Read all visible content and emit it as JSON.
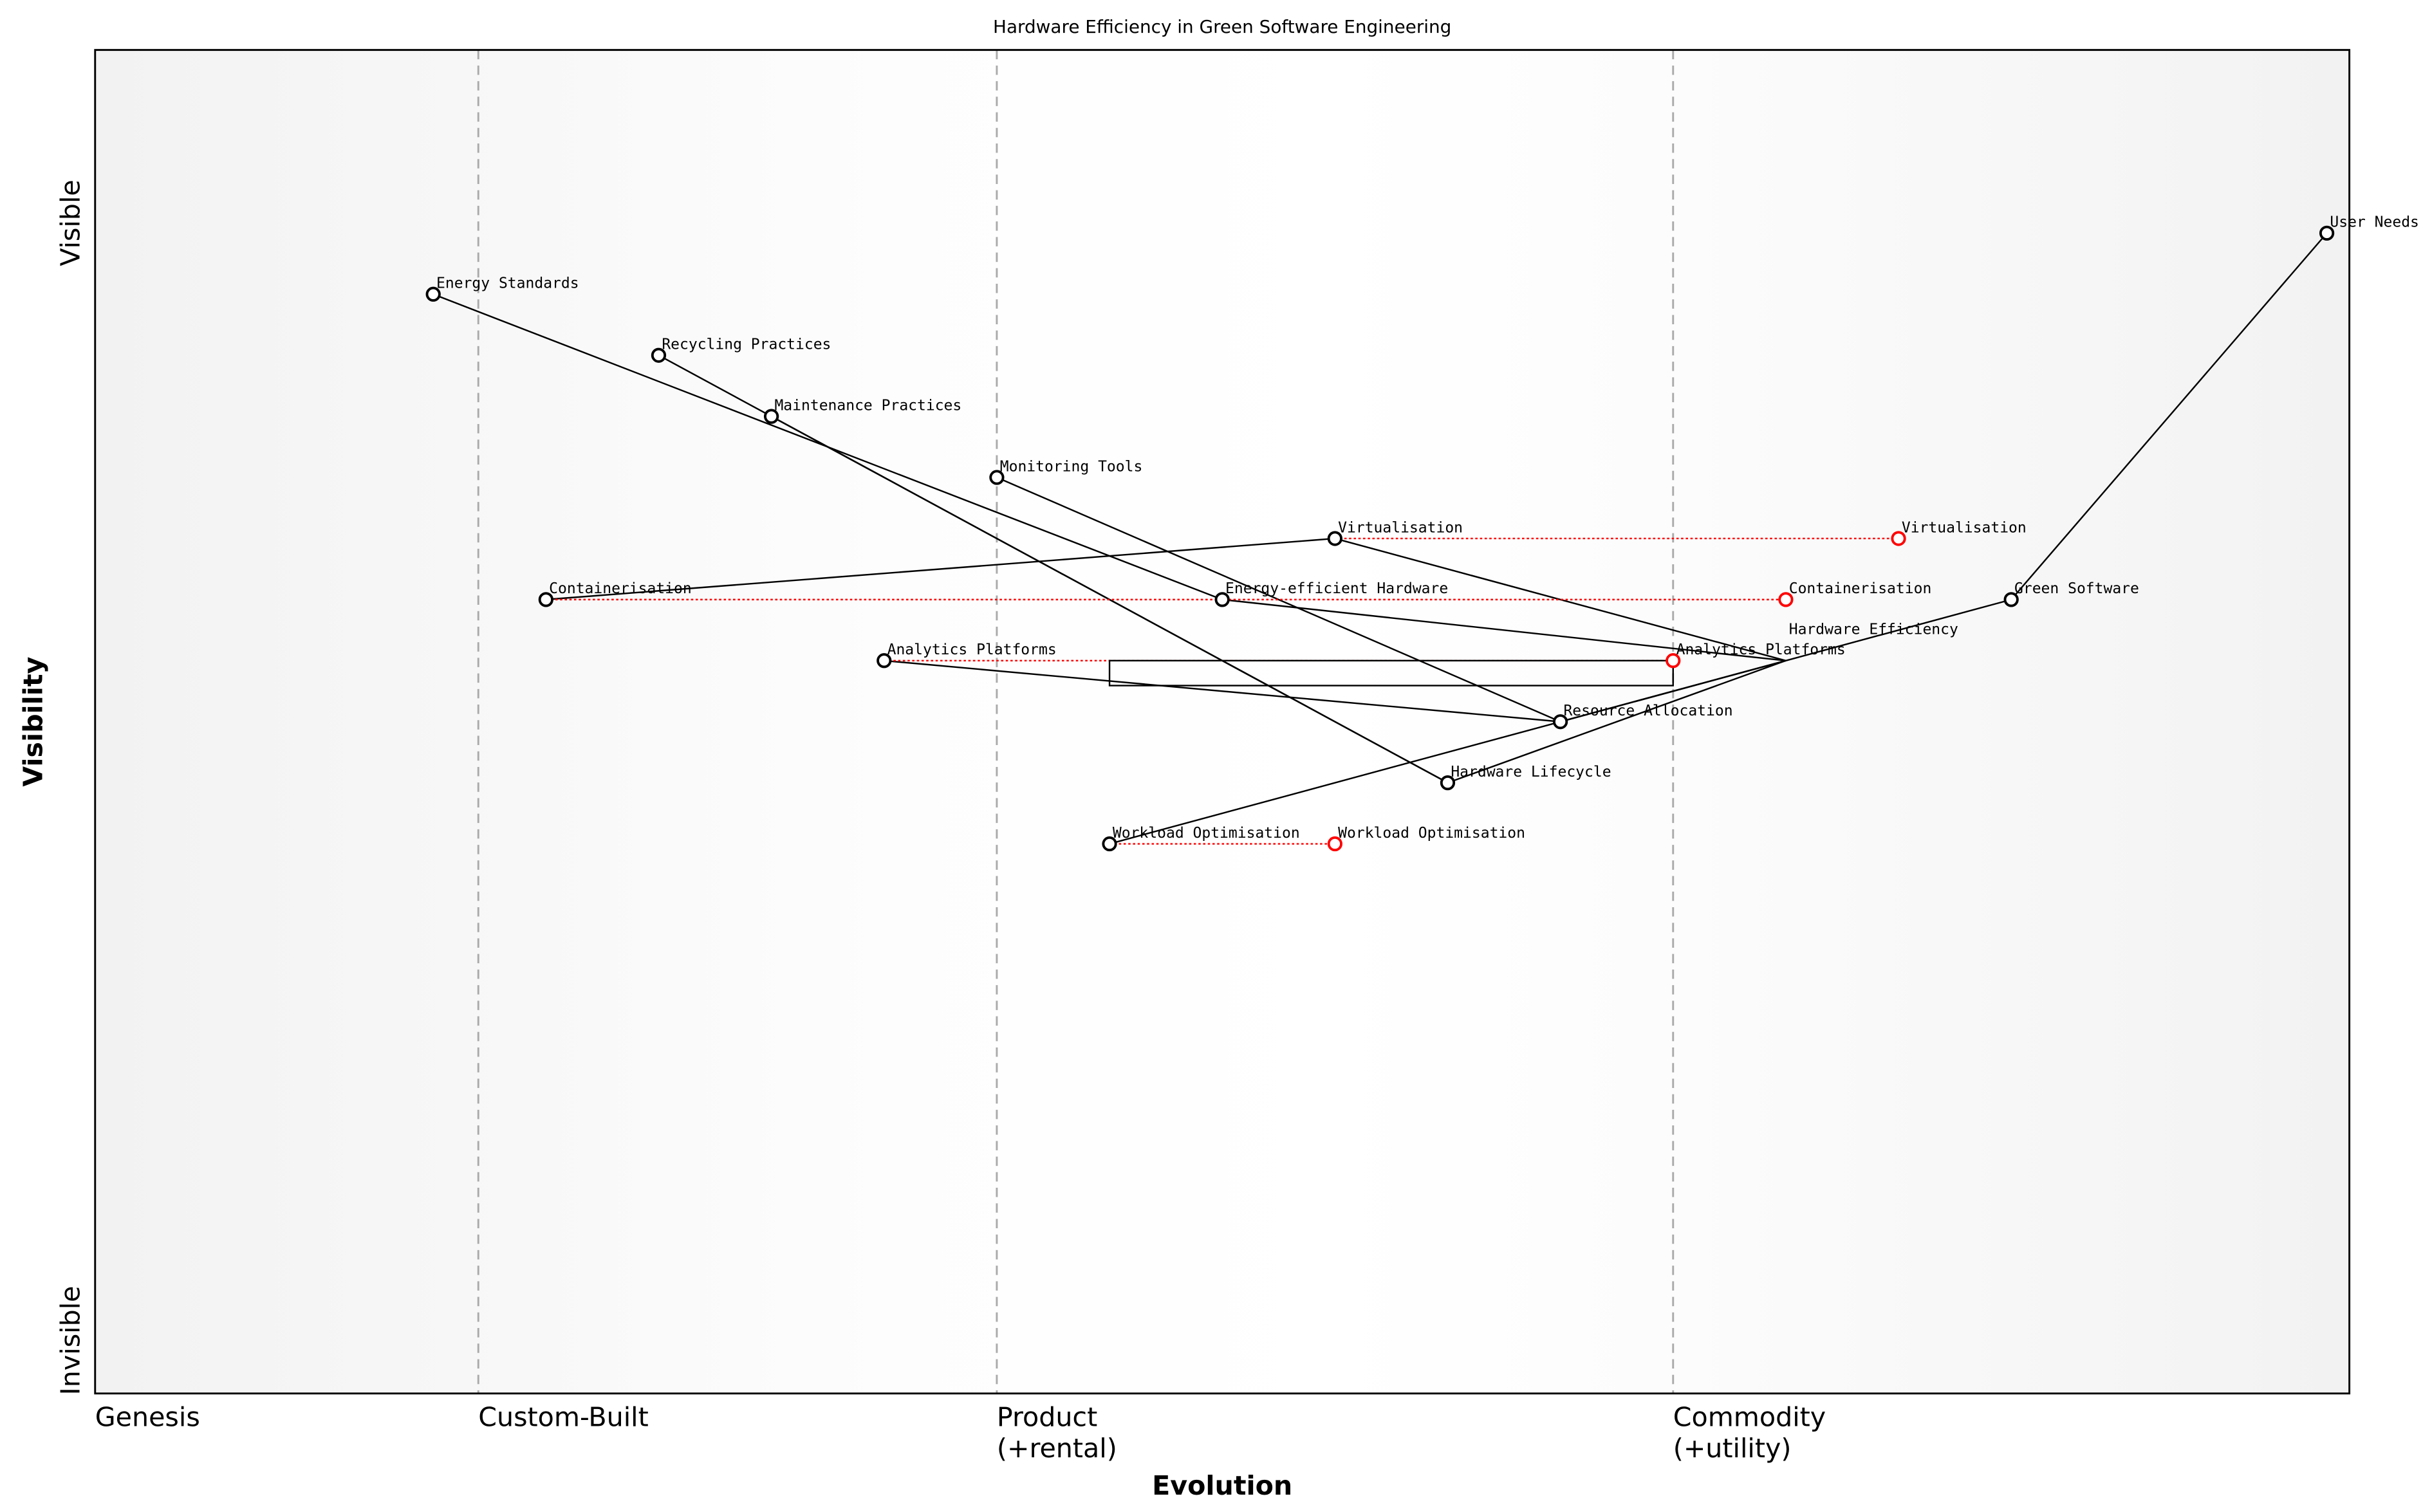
{
  "chart_data": {
    "type": "wardley-map",
    "title": "Hardware Efficiency in Green Software Engineering",
    "xlabel": "Evolution",
    "ylabel": "Visibility",
    "y_top_label": "Visible",
    "y_bottom_label": "Invisible",
    "xlim": [
      0,
      1
    ],
    "ylim": [
      0,
      1.1
    ],
    "stages": [
      {
        "label": "Genesis",
        "x": 0
      },
      {
        "label": "Custom-Built",
        "x": 0.17
      },
      {
        "label": "Product\n(+rental)",
        "x": 0.4
      },
      {
        "label": "Commodity\n(+utility)",
        "x": 0.7
      }
    ],
    "components": [
      {
        "name": "User Needs",
        "evolution": 0.99,
        "visibility": 0.95
      },
      {
        "name": "Energy Standards",
        "evolution": 0.15,
        "visibility": 0.9
      },
      {
        "name": "Recycling Practices",
        "evolution": 0.25,
        "visibility": 0.85
      },
      {
        "name": "Maintenance Practices",
        "evolution": 0.3,
        "visibility": 0.8
      },
      {
        "name": "Monitoring Tools",
        "evolution": 0.4,
        "visibility": 0.75
      },
      {
        "name": "Virtualisation",
        "evolution": 0.55,
        "visibility": 0.7
      },
      {
        "name": "Containerisation",
        "evolution": 0.2,
        "visibility": 0.65
      },
      {
        "name": "Energy-efficient Hardware",
        "evolution": 0.5,
        "visibility": 0.65
      },
      {
        "name": "Green Software",
        "evolution": 0.85,
        "visibility": 0.65
      },
      {
        "name": "Analytics Platforms",
        "evolution": 0.35,
        "visibility": 0.6
      },
      {
        "name": "Hardware Efficiency",
        "evolution": 0.75,
        "visibility": 0.6,
        "marker": false
      },
      {
        "name": "Resource Allocation",
        "evolution": 0.65,
        "visibility": 0.55
      },
      {
        "name": "Hardware Lifecycle",
        "evolution": 0.6,
        "visibility": 0.5
      },
      {
        "name": "Workload Optimisation",
        "evolution": 0.45,
        "visibility": 0.45
      }
    ],
    "evolved": [
      {
        "name": "Virtualisation",
        "from": 0.55,
        "to": 0.8,
        "visibility": 0.7
      },
      {
        "name": "Containerisation",
        "from": 0.2,
        "to": 0.75,
        "visibility": 0.65
      },
      {
        "name": "Analytics Platforms",
        "from": 0.35,
        "to": 0.7,
        "visibility": 0.6
      },
      {
        "name": "Workload Optimisation",
        "from": 0.45,
        "to": 0.55,
        "visibility": 0.45
      }
    ],
    "links": [
      [
        "User Needs",
        "Green Software"
      ],
      [
        "Green Software",
        "Hardware Efficiency"
      ],
      [
        "Hardware Efficiency",
        "Virtualisation"
      ],
      [
        "Hardware Efficiency",
        "Energy-efficient Hardware"
      ],
      [
        "Hardware Efficiency",
        "Resource Allocation"
      ],
      [
        "Hardware Efficiency",
        "Hardware Lifecycle"
      ],
      [
        "Hardware Efficiency",
        "Workload Optimisation"
      ],
      [
        "Energy-efficient Hardware",
        "Energy Standards"
      ],
      [
        "Virtualisation",
        "Containerisation"
      ],
      [
        "Hardware Lifecycle",
        "Recycling Practices"
      ],
      [
        "Hardware Lifecycle",
        "Maintenance Practices"
      ],
      [
        "Resource Allocation",
        "Monitoring Tools"
      ],
      [
        "Resource Allocation",
        "Analytics Platforms"
      ]
    ],
    "pipeline": {
      "from": 0.45,
      "to": 0.7,
      "visibility": 0.6
    },
    "colors": {
      "component": "#000000",
      "evolved": "#ff0000",
      "stage_line": "#aaaaaa",
      "background_edge": "#f2f2f2",
      "background_center": "#ffffff"
    }
  }
}
